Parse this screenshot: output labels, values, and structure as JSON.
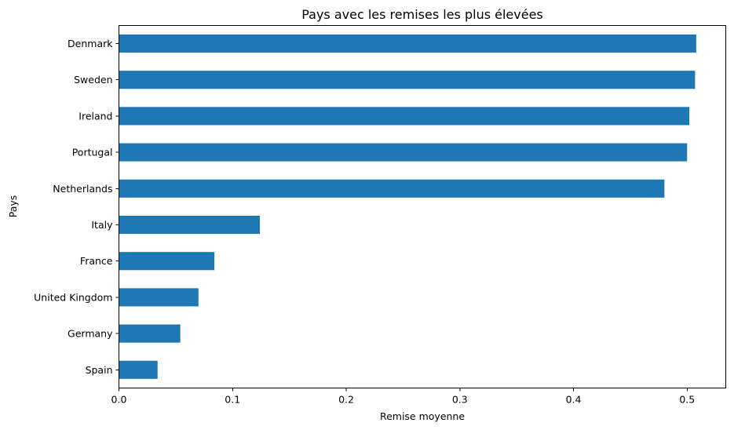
{
  "chart_data": {
    "type": "bar",
    "orientation": "horizontal",
    "title": "Pays avec les remises les plus élevées",
    "xlabel": "Remise moyenne",
    "ylabel": "Pays",
    "categories": [
      "Denmark",
      "Sweden",
      "Ireland",
      "Portugal",
      "Netherlands",
      "Italy",
      "France",
      "United Kingdom",
      "Germany",
      "Spain"
    ],
    "values": [
      0.508,
      0.507,
      0.502,
      0.5,
      0.48,
      0.124,
      0.084,
      0.07,
      0.054,
      0.034
    ],
    "xlim": [
      0,
      0.534
    ],
    "xticks": [
      "0.0",
      "0.1",
      "0.2",
      "0.3",
      "0.4",
      "0.5"
    ],
    "xtick_values": [
      0,
      0.1,
      0.2,
      0.3,
      0.4,
      0.5
    ],
    "grid": false,
    "color": "#1f77b4"
  }
}
